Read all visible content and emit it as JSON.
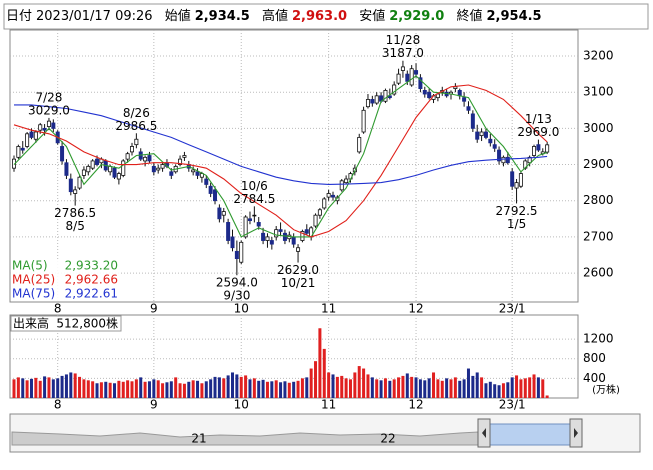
{
  "header": {
    "date_label": "日付",
    "date": "2023/01/17 09:26",
    "open_label": "始値",
    "open": "2,934.5",
    "high_label": "高値",
    "high": "2,963.0",
    "low_label": "安値",
    "low": "2,929.0",
    "close_label": "終値",
    "close": "2,954.5"
  },
  "chart_data": [
    {
      "type": "candlestick",
      "categories": [
        null,
        null,
        null,
        null,
        null,
        null,
        null,
        null,
        null,
        null,
        "8",
        null,
        null,
        null,
        null,
        null,
        null,
        null,
        null,
        null,
        null,
        null,
        null,
        null,
        null,
        null,
        null,
        null,
        null,
        null,
        null,
        null,
        "9",
        null,
        null,
        null,
        null,
        null,
        null,
        null,
        null,
        null,
        null,
        null,
        null,
        null,
        null,
        null,
        null,
        null,
        null,
        null,
        "10",
        null,
        null,
        null,
        null,
        null,
        null,
        null,
        null,
        null,
        null,
        null,
        null,
        null,
        null,
        null,
        null,
        null,
        null,
        null,
        "11",
        null,
        null,
        null,
        null,
        null,
        null,
        null,
        null,
        null,
        null,
        null,
        null,
        null,
        null,
        null,
        null,
        null,
        null,
        null,
        "12",
        null,
        null,
        null,
        null,
        null,
        null,
        null,
        null,
        null,
        null,
        null,
        null,
        null,
        null,
        null,
        null,
        null,
        null,
        null,
        null,
        null,
        "23/1",
        null,
        null,
        null,
        null,
        null,
        null,
        null,
        null
      ],
      "ohlc": [
        [
          2890,
          2925,
          2880,
          2915
        ],
        [
          2920,
          2955,
          2915,
          2950
        ],
        [
          2945,
          2965,
          2930,
          2940
        ],
        [
          2950,
          2990,
          2945,
          2985
        ],
        [
          2990,
          3000,
          2970,
          2975
        ],
        [
          2970,
          2995,
          2960,
          2990
        ],
        [
          2995,
          3015,
          2985,
          3010
        ],
        [
          3000,
          3012,
          2980,
          2995
        ],
        [
          3005,
          3029,
          2995,
          3020
        ],
        [
          3015,
          3025,
          2990,
          3000
        ],
        [
          2990,
          2995,
          2955,
          2960
        ],
        [
          2950,
          2965,
          2900,
          2910
        ],
        [
          2905,
          2915,
          2860,
          2870
        ],
        [
          2860,
          2875,
          2815,
          2825
        ],
        [
          2820,
          2840,
          2786.5,
          2830
        ],
        [
          2835,
          2870,
          2830,
          2865
        ],
        [
          2870,
          2895,
          2860,
          2885
        ],
        [
          2880,
          2900,
          2870,
          2895
        ],
        [
          2890,
          2915,
          2885,
          2910
        ],
        [
          2915,
          2925,
          2895,
          2900
        ],
        [
          2905,
          2920,
          2890,
          2915
        ],
        [
          2910,
          2915,
          2880,
          2885
        ],
        [
          2880,
          2900,
          2870,
          2895
        ],
        [
          2890,
          2895,
          2860,
          2865
        ],
        [
          2860,
          2880,
          2845,
          2875
        ],
        [
          2870,
          2915,
          2865,
          2910
        ],
        [
          2915,
          2935,
          2905,
          2930
        ],
        [
          2935,
          2960,
          2925,
          2950
        ],
        [
          2955,
          2986.5,
          2945,
          2970
        ],
        [
          2935,
          2945,
          2910,
          2915
        ],
        [
          2910,
          2925,
          2895,
          2920
        ],
        [
          2925,
          2935,
          2905,
          2910
        ],
        [
          2895,
          2905,
          2870,
          2880
        ],
        [
          2885,
          2900,
          2875,
          2890
        ],
        [
          2890,
          2905,
          2880,
          2900
        ],
        [
          2905,
          2915,
          2890,
          2895
        ],
        [
          2880,
          2890,
          2860,
          2870
        ],
        [
          2880,
          2900,
          2875,
          2895
        ],
        [
          2900,
          2925,
          2895,
          2915
        ],
        [
          2920,
          2935,
          2910,
          2925
        ],
        [
          2900,
          2910,
          2880,
          2890
        ],
        [
          2880,
          2895,
          2870,
          2885
        ],
        [
          2880,
          2890,
          2860,
          2870
        ],
        [
          2865,
          2880,
          2850,
          2875
        ],
        [
          2860,
          2870,
          2835,
          2845
        ],
        [
          2840,
          2850,
          2810,
          2820
        ],
        [
          2830,
          2840,
          2790,
          2800
        ],
        [
          2780,
          2790,
          2740,
          2750
        ],
        [
          2760,
          2780,
          2740,
          2770
        ],
        [
          2740,
          2750,
          2680,
          2690
        ],
        [
          2700,
          2720,
          2660,
          2670
        ],
        [
          2660,
          2690,
          2594,
          2640
        ],
        [
          2630,
          2690,
          2625,
          2685
        ],
        [
          2700,
          2760,
          2695,
          2755
        ],
        [
          2750,
          2770,
          2735,
          2745
        ],
        [
          2760,
          2784.5,
          2740,
          2760
        ],
        [
          2740,
          2755,
          2720,
          2730
        ],
        [
          2710,
          2725,
          2680,
          2690
        ],
        [
          2690,
          2710,
          2670,
          2700
        ],
        [
          2690,
          2700,
          2665,
          2680
        ],
        [
          2700,
          2730,
          2690,
          2720
        ],
        [
          2720,
          2740,
          2705,
          2715
        ],
        [
          2710,
          2720,
          2680,
          2690
        ],
        [
          2695,
          2715,
          2685,
          2705
        ],
        [
          2700,
          2710,
          2670,
          2680
        ],
        [
          2660,
          2680,
          2629,
          2670
        ],
        [
          2690,
          2720,
          2685,
          2715
        ],
        [
          2720,
          2735,
          2705,
          2710
        ],
        [
          2700,
          2730,
          2690,
          2725
        ],
        [
          2730,
          2765,
          2725,
          2760
        ],
        [
          2760,
          2780,
          2750,
          2775
        ],
        [
          2780,
          2810,
          2775,
          2805
        ],
        [
          2810,
          2830,
          2800,
          2820
        ],
        [
          2815,
          2825,
          2800,
          2810
        ],
        [
          2800,
          2815,
          2790,
          2810
        ],
        [
          2830,
          2860,
          2825,
          2855
        ],
        [
          2850,
          2870,
          2845,
          2860
        ],
        [
          2860,
          2880,
          2850,
          2875
        ],
        [
          2880,
          2900,
          2870,
          2890
        ],
        [
          2935,
          2985,
          2930,
          2975
        ],
        [
          2990,
          3060,
          2985,
          3050
        ],
        [
          3060,
          3095,
          3055,
          3080
        ],
        [
          3080,
          3090,
          3060,
          3070
        ],
        [
          3070,
          3100,
          3065,
          3090
        ],
        [
          3090,
          3100,
          3070,
          3075
        ],
        [
          3075,
          3110,
          3070,
          3105
        ],
        [
          3090,
          3110,
          3080,
          3085
        ],
        [
          3095,
          3130,
          3090,
          3120
        ],
        [
          3125,
          3165,
          3120,
          3150
        ],
        [
          3160,
          3187,
          3140,
          3170
        ],
        [
          3150,
          3160,
          3120,
          3130
        ],
        [
          3120,
          3175,
          3115,
          3165
        ],
        [
          3160,
          3180,
          3140,
          3150
        ],
        [
          3140,
          3150,
          3100,
          3110
        ],
        [
          3105,
          3115,
          3085,
          3095
        ],
        [
          3100,
          3110,
          3080,
          3085
        ],
        [
          3080,
          3095,
          3070,
          3090
        ],
        [
          3085,
          3100,
          3075,
          3095
        ],
        [
          3100,
          3115,
          3090,
          3105
        ],
        [
          3100,
          3110,
          3085,
          3090
        ],
        [
          3095,
          3105,
          3080,
          3100
        ],
        [
          3110,
          3125,
          3100,
          3115
        ],
        [
          3105,
          3110,
          3080,
          3090
        ],
        [
          3085,
          3100,
          3060,
          3075
        ],
        [
          3060,
          3075,
          3040,
          3050
        ],
        [
          3040,
          3050,
          2990,
          3000
        ],
        [
          2990,
          3010,
          2960,
          2970
        ],
        [
          2980,
          3000,
          2965,
          2990
        ],
        [
          2990,
          3000,
          2970,
          2975
        ],
        [
          2970,
          2985,
          2950,
          2960
        ],
        [
          2955,
          2970,
          2935,
          2945
        ],
        [
          2940,
          2950,
          2900,
          2910
        ],
        [
          2905,
          2925,
          2895,
          2920
        ],
        [
          2920,
          2935,
          2900,
          2905
        ],
        [
          2880,
          2890,
          2830,
          2840
        ],
        [
          2835,
          2860,
          2792.5,
          2850
        ],
        [
          2840,
          2880,
          2835,
          2875
        ],
        [
          2890,
          2915,
          2885,
          2910
        ],
        [
          2905,
          2925,
          2895,
          2920
        ],
        [
          2925,
          2955,
          2920,
          2950
        ],
        [
          2955,
          2969,
          2935,
          2940
        ],
        [
          2930,
          2945,
          2925,
          2935
        ],
        [
          2934.5,
          2963,
          2929,
          2954.5
        ]
      ],
      "up_color": "#ffffff",
      "down_color": "#1c2a8a",
      "wick_color": "#111111",
      "series": [
        {
          "name": "MA(5)",
          "color": "#2f9a2f",
          "last_label": "2,933.20",
          "x": [
            0,
            4,
            8,
            12,
            16,
            20,
            24,
            28,
            32,
            36,
            40,
            44,
            48,
            52,
            56,
            60,
            64,
            68,
            72,
            76,
            80,
            84,
            88,
            92,
            96,
            100,
            104,
            108,
            112,
            116,
            120,
            122
          ],
          "values": [
            2900,
            2950,
            3000,
            2950,
            2845,
            2900,
            2890,
            2925,
            2930,
            2885,
            2895,
            2870,
            2800,
            2700,
            2725,
            2705,
            2700,
            2700,
            2780,
            2835,
            2930,
            3075,
            3110,
            3145,
            3100,
            3095,
            3085,
            3000,
            2950,
            2880,
            2925,
            2933.2
          ]
        },
        {
          "name": "MA(25)",
          "color": "#e0201a",
          "last_label": "2,962.66",
          "x": [
            0,
            4,
            8,
            12,
            16,
            20,
            24,
            28,
            32,
            36,
            40,
            44,
            48,
            52,
            56,
            60,
            64,
            68,
            72,
            76,
            80,
            84,
            88,
            92,
            96,
            100,
            104,
            108,
            112,
            116,
            120,
            122
          ],
          "values": [
            3010,
            2995,
            2985,
            2965,
            2935,
            2915,
            2900,
            2900,
            2905,
            2905,
            2900,
            2890,
            2860,
            2820,
            2790,
            2760,
            2720,
            2700,
            2715,
            2745,
            2800,
            2870,
            2950,
            3030,
            3090,
            3115,
            3120,
            3105,
            3080,
            3035,
            2985,
            2962.66
          ]
        },
        {
          "name": "MA(75)",
          "color": "#2233d0",
          "last_label": "2,922.61",
          "x": [
            0,
            4,
            8,
            12,
            16,
            20,
            24,
            28,
            32,
            36,
            40,
            44,
            48,
            52,
            56,
            60,
            64,
            68,
            72,
            76,
            80,
            84,
            88,
            92,
            96,
            100,
            104,
            108,
            112,
            116,
            120,
            122
          ],
          "values": [
            3065,
            3065,
            3060,
            3055,
            3045,
            3035,
            3020,
            3005,
            2990,
            2975,
            2955,
            2935,
            2915,
            2895,
            2880,
            2865,
            2855,
            2848,
            2845,
            2846,
            2848,
            2850,
            2858,
            2870,
            2885,
            2898,
            2908,
            2912,
            2915,
            2917,
            2920,
            2922.61
          ]
        }
      ],
      "annotations": [
        {
          "date": "7/28",
          "value": "3029.0"
        },
        {
          "date": "8/5",
          "value": "2786.5"
        },
        {
          "date": "8/26",
          "value": "2986.5"
        },
        {
          "date": "9/30",
          "value": "2594.0"
        },
        {
          "date": "10/6",
          "value": "2784.5"
        },
        {
          "date": "10/21",
          "value": "2629.0"
        },
        {
          "date": "11/28",
          "value": "3187.0"
        },
        {
          "date": "1/5",
          "value": "2792.5"
        },
        {
          "date": "1/13",
          "value": "2969.0"
        }
      ],
      "ylim": [
        2520,
        3272
      ],
      "yticks": [
        2600,
        2700,
        2800,
        2900,
        3000,
        3100,
        3200
      ],
      "grid": true
    },
    {
      "type": "bar",
      "title": "出来高",
      "latest_label": "512,800株",
      "unit": "(万株)",
      "values": [
        380,
        420,
        400,
        360,
        390,
        410,
        350,
        440,
        420,
        380,
        400,
        450,
        480,
        520,
        500,
        430,
        380,
        360,
        340,
        300,
        320,
        330,
        310,
        300,
        350,
        330,
        360,
        340,
        380,
        420,
        330,
        340,
        380,
        360,
        300,
        320,
        340,
        420,
        300,
        290,
        330,
        360,
        350,
        300,
        340,
        380,
        430,
        420,
        400,
        460,
        520,
        480,
        430,
        460,
        380,
        400,
        350,
        370,
        330,
        340,
        360,
        320,
        340,
        310,
        330,
        350,
        400,
        420,
        600,
        750,
        1420,
        1000,
        520,
        480,
        430,
        450,
        400,
        380,
        520,
        650,
        600,
        480,
        420,
        380,
        360,
        400,
        350,
        380,
        420,
        450,
        500,
        430,
        420,
        380,
        360,
        400,
        520,
        380,
        350,
        400,
        380,
        420,
        350,
        380,
        600,
        450,
        520,
        420,
        300,
        330,
        280,
        260,
        300,
        320,
        420,
        460,
        380,
        400,
        420,
        480,
        420,
        380,
        51.28
      ],
      "up_color": "#e02020",
      "down_color": "#1c2a8a",
      "ylim": [
        0,
        1690
      ],
      "yticks": [
        400,
        800,
        1200
      ],
      "grid": true
    }
  ],
  "navigator": {
    "labels": [
      "21",
      "22"
    ]
  }
}
